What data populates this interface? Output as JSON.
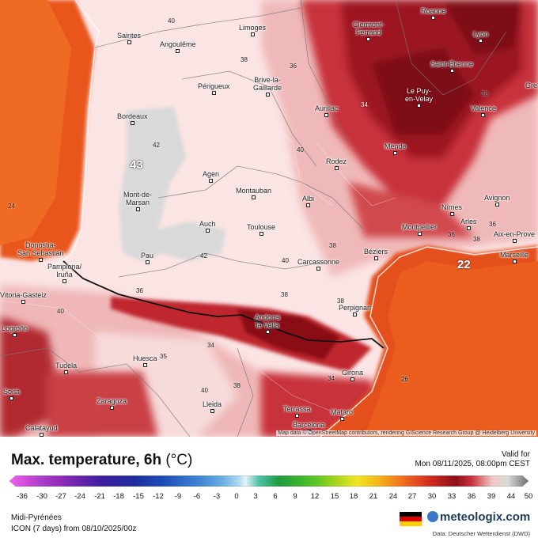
{
  "map": {
    "cities": [
      {
        "name": "Saintes"
      },
      {
        "name": "Angoulême"
      },
      {
        "name": "Limoges"
      },
      {
        "name": "Clermont-\nFerrand"
      },
      {
        "name": "Roanne"
      },
      {
        "name": "Lyon"
      },
      {
        "name": "Saint-Étienne"
      },
      {
        "name": "Périgueux"
      },
      {
        "name": "Brive-la-\nGaillarde"
      },
      {
        "name": "Le Puy-\nen-Velay"
      },
      {
        "name": "Aurillac"
      },
      {
        "name": "Valence"
      },
      {
        "name": "Bordeaux"
      },
      {
        "name": "Mende"
      },
      {
        "name": "Rodez"
      },
      {
        "name": "Agen"
      },
      {
        "name": "Montauban"
      },
      {
        "name": "Albi"
      },
      {
        "name": "Mont-de-\nMarsan"
      },
      {
        "name": "Nîmes"
      },
      {
        "name": "Avignon"
      },
      {
        "name": "Arles"
      },
      {
        "name": "Montpellier"
      },
      {
        "name": "Aix-en-Prove"
      },
      {
        "name": "Auch"
      },
      {
        "name": "Toulouse"
      },
      {
        "name": "Donostia-\nSan Sebastián"
      },
      {
        "name": "Pau"
      },
      {
        "name": "Carcassonne"
      },
      {
        "name": "Béziers"
      },
      {
        "name": "Marseille"
      },
      {
        "name": "Pamplona/\nIruña"
      },
      {
        "name": "Vitoria-Gasteiz"
      },
      {
        "name": "Andorra\nla Vella"
      },
      {
        "name": "Perpignan"
      },
      {
        "name": "Logroño"
      },
      {
        "name": "Huesca"
      },
      {
        "name": "Tudela"
      },
      {
        "name": "Girona"
      },
      {
        "name": "Soria"
      },
      {
        "name": "Zaragoza"
      },
      {
        "name": "Lleida"
      },
      {
        "name": "Terrassa"
      },
      {
        "name": "Mataró"
      },
      {
        "name": "Barcelona"
      },
      {
        "name": "Calatayud"
      },
      {
        "name": "Gre"
      }
    ],
    "values": [
      "40",
      "38",
      "36",
      "42",
      "40",
      "34",
      "38",
      "24",
      "40",
      "42",
      "38",
      "40",
      "36",
      "38",
      "34",
      "38",
      "35",
      "36",
      "40",
      "38",
      "34",
      "26",
      "36",
      "38"
    ],
    "highlight_values": [
      "43",
      "22"
    ],
    "attribution": "Map data © OpenStreetMap contributors, rendering GIScience Research Group @ Heidelberg University"
  },
  "legend": {
    "title": "Max. temperature, 6h",
    "unit": "(°C)",
    "valid_label": "Valid for",
    "valid_date": "Mon 08/11/2025, 08:00pm CEST",
    "ticks": [
      "-36",
      "-30",
      "-27",
      "-24",
      "-21",
      "-18",
      "-15",
      "-12",
      "-9",
      "-6",
      "-3",
      "0",
      "3",
      "6",
      "9",
      "12",
      "15",
      "18",
      "21",
      "24",
      "27",
      "30",
      "33",
      "36",
      "39",
      "44",
      "50"
    ],
    "region": "Midi-Pyrénées",
    "model": "ICON (7 days) from  08/10/2025/00z",
    "brand": "meteologix.com",
    "source": "Data: Deutscher Wetterdienst (DWD)"
  },
  "colors": {
    "hot_sea": "#e8561b",
    "very_hot": "#8c0f1a",
    "hot": "#c7313a",
    "warm": "#f2c6c6",
    "pale": "#fbeaea",
    "grey_area": "#d9d9d9"
  }
}
